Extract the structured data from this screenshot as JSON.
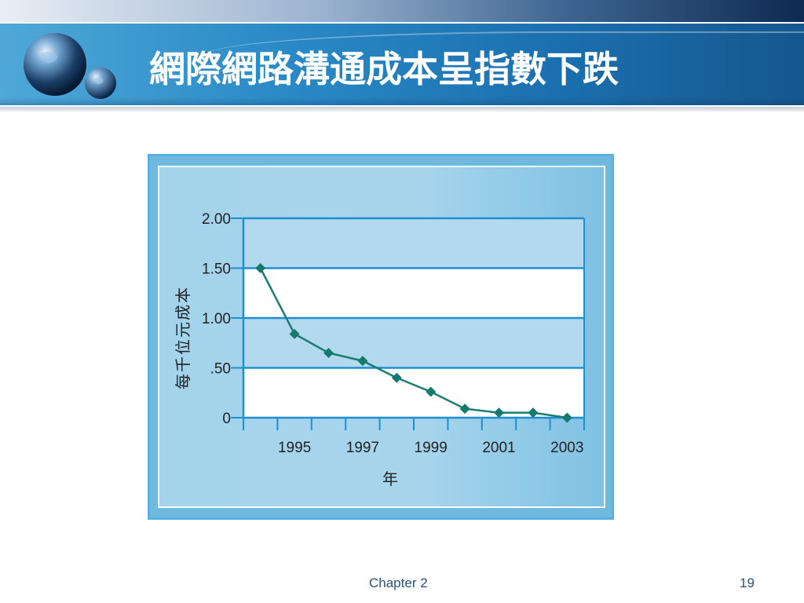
{
  "slide": {
    "title": "網際網路溝通成本呈指數下跌",
    "footer_chapter": "Chapter 2",
    "page_number": "19"
  },
  "chart_data": {
    "type": "line",
    "title": "",
    "xlabel": "年",
    "ylabel": "每千位元成本",
    "x": [
      1994.5,
      1995.5,
      1996.5,
      1997.5,
      1998.5,
      1999.5,
      2000.5,
      2001.5,
      2002.5,
      2003.5
    ],
    "series": [
      {
        "values": [
          1.5,
          0.84,
          0.65,
          0.57,
          0.4,
          0.26,
          0.09,
          0.05,
          0.05,
          0.0
        ]
      }
    ],
    "xlim": [
      1994,
      2004
    ],
    "ylim": [
      0,
      2
    ],
    "x_tick_labels": [
      {
        "value": 1995,
        "label": "1995"
      },
      {
        "value": 1997,
        "label": "1997"
      },
      {
        "value": 1999,
        "label": "1999"
      },
      {
        "value": 2001,
        "label": "2001"
      },
      {
        "value": 2003,
        "label": "2003"
      }
    ],
    "y_tick_labels": [
      {
        "value": 0,
        "label": "0"
      },
      {
        "value": 0.5,
        "label": ".50"
      },
      {
        "value": 1.0,
        "label": "1.00"
      },
      {
        "value": 1.5,
        "label": "1.50"
      },
      {
        "value": 2.0,
        "label": "2.00"
      }
    ],
    "grid": true,
    "legend": "none",
    "colors": {
      "line": "#1a7d72",
      "marker": "#157a6e",
      "grid": "#1f8fd0",
      "band_light": "#ffffff",
      "band_blue": "#b2d9ee"
    }
  }
}
